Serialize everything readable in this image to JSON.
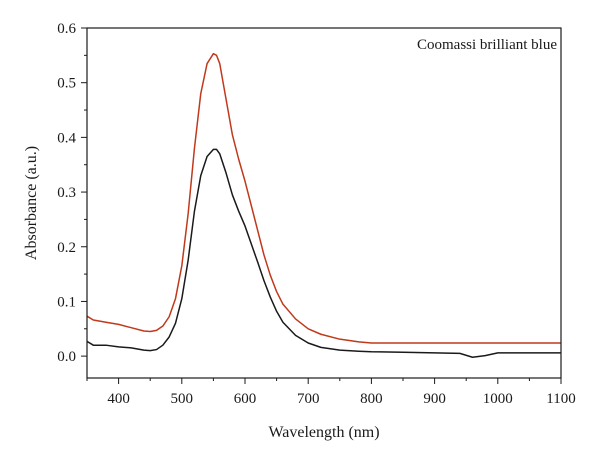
{
  "chart_data": {
    "type": "line",
    "title": "",
    "annotation": "Coomassi brilliant blue",
    "xlabel": "Wavelength (nm)",
    "ylabel": "Absorbance (a.u.)",
    "xlim": [
      350,
      1100
    ],
    "ylim": [
      -0.04,
      0.6
    ],
    "xticks": [
      400,
      500,
      600,
      700,
      800,
      900,
      1000,
      1100
    ],
    "yticks": [
      0.0,
      0.1,
      0.2,
      0.3,
      0.4,
      0.5,
      0.6
    ],
    "ytick_labels": [
      "0.0",
      "0.1",
      "0.2",
      "0.3",
      "0.4",
      "0.5",
      "0.6"
    ],
    "grid": false,
    "legend": "none",
    "series": [
      {
        "color": "#c0391b",
        "x": [
          350,
          360,
          380,
          400,
          420,
          440,
          450,
          460,
          470,
          480,
          490,
          500,
          510,
          520,
          530,
          540,
          550,
          555,
          560,
          570,
          580,
          590,
          600,
          610,
          620,
          630,
          640,
          650,
          660,
          680,
          700,
          720,
          750,
          780,
          800,
          850,
          900,
          950,
          1000,
          1050,
          1100
        ],
        "y": [
          0.073,
          0.066,
          0.062,
          0.058,
          0.052,
          0.046,
          0.045,
          0.047,
          0.055,
          0.072,
          0.105,
          0.165,
          0.26,
          0.38,
          0.48,
          0.535,
          0.553,
          0.55,
          0.535,
          0.47,
          0.405,
          0.36,
          0.32,
          0.275,
          0.23,
          0.185,
          0.148,
          0.118,
          0.095,
          0.068,
          0.05,
          0.04,
          0.031,
          0.026,
          0.024,
          0.024,
          0.024,
          0.024,
          0.024,
          0.024,
          0.024
        ]
      },
      {
        "color": "#1a1a1a",
        "x": [
          350,
          360,
          380,
          400,
          420,
          440,
          450,
          460,
          470,
          480,
          490,
          500,
          510,
          520,
          530,
          540,
          550,
          555,
          560,
          570,
          580,
          590,
          600,
          610,
          620,
          630,
          640,
          650,
          660,
          680,
          700,
          720,
          750,
          780,
          800,
          850,
          900,
          940,
          960,
          980,
          1000,
          1050,
          1100
        ],
        "y": [
          0.027,
          0.02,
          0.02,
          0.017,
          0.015,
          0.011,
          0.01,
          0.012,
          0.02,
          0.035,
          0.06,
          0.105,
          0.175,
          0.265,
          0.33,
          0.365,
          0.378,
          0.378,
          0.37,
          0.335,
          0.295,
          0.265,
          0.238,
          0.205,
          0.172,
          0.138,
          0.108,
          0.082,
          0.062,
          0.038,
          0.024,
          0.016,
          0.011,
          0.009,
          0.008,
          0.007,
          0.006,
          0.005,
          -0.002,
          0.001,
          0.006,
          0.006,
          0.006
        ]
      }
    ]
  }
}
